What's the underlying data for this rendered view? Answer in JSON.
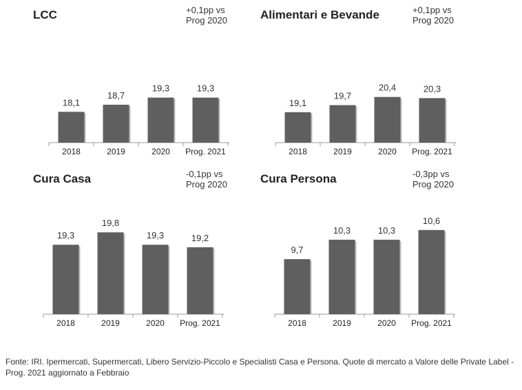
{
  "chart_data": [
    {
      "type": "bar",
      "title": "LCC",
      "note": "+0,1pp vs\nProg 2020",
      "categories": [
        "2018",
        "2019",
        "2020",
        "Prog. 2021"
      ],
      "values": [
        18.1,
        18.7,
        19.3,
        19.3
      ],
      "value_labels": [
        "18,1",
        "18,7",
        "19,3",
        "19,3"
      ],
      "bar_color": "#5f5f5f"
    },
    {
      "type": "bar",
      "title": "Alimentari  e Bevande",
      "note": "+0,1pp vs\nProg 2020",
      "categories": [
        "2018",
        "2019",
        "2020",
        "Prog. 2021"
      ],
      "values": [
        19.1,
        19.7,
        20.4,
        20.3
      ],
      "value_labels": [
        "19,1",
        "19,7",
        "20,4",
        "20,3"
      ],
      "bar_color": "#5f5f5f"
    },
    {
      "type": "bar",
      "title": "Cura Casa",
      "note": "-0,1pp vs\nProg 2020",
      "categories": [
        "2018",
        "2019",
        "2020",
        "Prog. 2021"
      ],
      "values": [
        19.3,
        19.8,
        19.3,
        19.2
      ],
      "value_labels": [
        "19,3",
        "19,8",
        "19,3",
        "19,2"
      ],
      "bar_color": "#5f5f5f"
    },
    {
      "type": "bar",
      "title": "Cura Persona",
      "note": "-0,3pp vs\nProg 2020",
      "categories": [
        "2018",
        "2019",
        "2020",
        "Prog. 2021"
      ],
      "values": [
        9.7,
        10.3,
        10.3,
        10.6
      ],
      "value_labels": [
        "9,7",
        "10,3",
        "10,3",
        "10,6"
      ],
      "bar_color": "#5f5f5f"
    }
  ],
  "footnote": "Fonte: IRI. Ipermercati, Supermercati, Libero Servizio-Piccolo e Specialisti Casa e Persona. Quote di mercato a Valore delle Private Label - Prog. 2021 aggiornato a Febbraio"
}
